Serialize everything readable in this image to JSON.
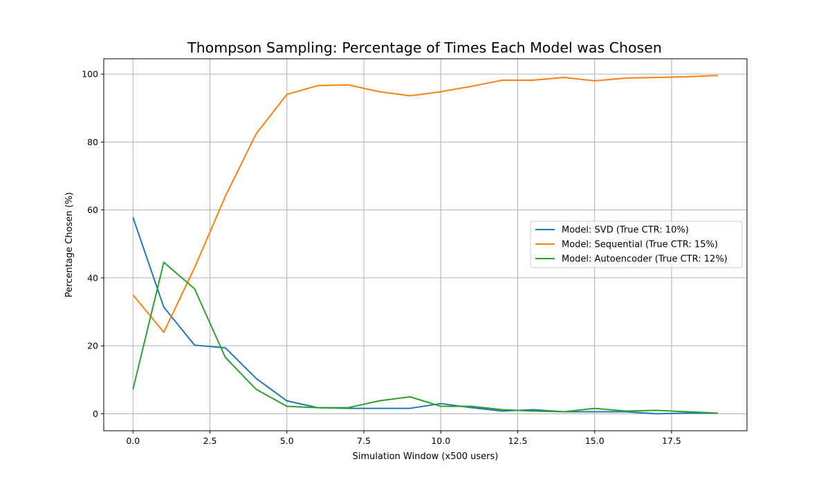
{
  "chart_data": {
    "type": "line",
    "title": "Thompson Sampling: Percentage of Times Each Model was Chosen",
    "xlabel": "Simulation Window (x500 users)",
    "ylabel": "Percentage Chosen (%)",
    "xlim": [
      -0.95,
      19.95
    ],
    "ylim": [
      -5,
      104.5
    ],
    "xticks": [
      0.0,
      2.5,
      5.0,
      7.5,
      10.0,
      12.5,
      15.0,
      17.5
    ],
    "xtick_labels": [
      "0.0",
      "2.5",
      "5.0",
      "7.5",
      "10.0",
      "12.5",
      "15.0",
      "17.5"
    ],
    "yticks": [
      0,
      20,
      40,
      60,
      80,
      100
    ],
    "ytick_labels": [
      "0",
      "20",
      "40",
      "60",
      "80",
      "100"
    ],
    "grid": true,
    "legend_position": "center-right",
    "x": [
      0,
      1,
      2,
      3,
      4,
      5,
      6,
      7,
      8,
      9,
      10,
      11,
      12,
      13,
      14,
      15,
      16,
      17,
      18,
      19
    ],
    "series": [
      {
        "name": "Model: SVD (True CTR: 10%)",
        "color": "#1f77b4",
        "values": [
          57.8,
          31.4,
          20.2,
          19.4,
          10.4,
          3.8,
          1.8,
          1.6,
          1.6,
          1.6,
          3.0,
          1.8,
          0.8,
          1.2,
          0.6,
          0.6,
          0.6,
          0.0,
          0.2,
          0.2
        ]
      },
      {
        "name": "Model: Sequential (True CTR: 15%)",
        "color": "#ff7f0e",
        "values": [
          35.0,
          24.0,
          43.0,
          64.0,
          82.4,
          94.0,
          96.6,
          96.8,
          94.8,
          93.6,
          94.8,
          96.4,
          98.2,
          98.2,
          99.0,
          98.0,
          98.8,
          99.0,
          99.2,
          99.6
        ]
      },
      {
        "name": "Model: Autoencoder (True CTR: 12%)",
        "color": "#2ca02c",
        "values": [
          7.2,
          44.6,
          36.8,
          16.6,
          7.2,
          2.2,
          1.8,
          1.8,
          3.8,
          5.0,
          2.2,
          2.2,
          1.2,
          0.8,
          0.6,
          1.6,
          0.8,
          1.0,
          0.6,
          0.2
        ]
      }
    ]
  }
}
